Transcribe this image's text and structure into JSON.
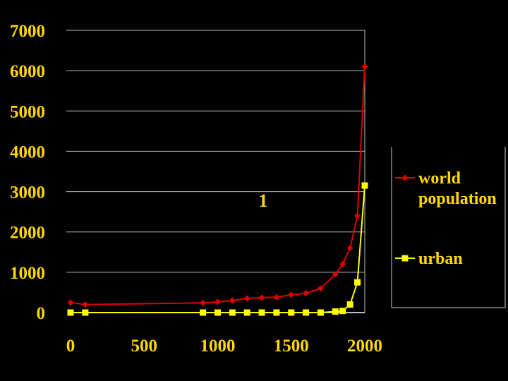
{
  "chart_data": {
    "type": "line",
    "x_ticks": [
      "0",
      "500",
      "1000",
      "1500",
      "2000"
    ],
    "y_ticks": [
      "0",
      "1000",
      "2000",
      "3000",
      "4000",
      "5000",
      "6000",
      "7000"
    ],
    "xlim": [
      0,
      2000
    ],
    "ylim": [
      0,
      7000
    ],
    "grid": "horizontal",
    "annotation": "1",
    "series": [
      {
        "name": "world population",
        "legend_lines": [
          "world",
          "population"
        ],
        "color": "#e00000",
        "marker": "diamond",
        "points": [
          [
            0,
            250
          ],
          [
            100,
            200
          ],
          [
            900,
            240
          ],
          [
            1000,
            265
          ],
          [
            1100,
            300
          ],
          [
            1200,
            350
          ],
          [
            1300,
            370
          ],
          [
            1400,
            380
          ],
          [
            1500,
            440
          ],
          [
            1600,
            480
          ],
          [
            1700,
            600
          ],
          [
            1800,
            950
          ],
          [
            1850,
            1200
          ],
          [
            1900,
            1600
          ],
          [
            1950,
            2400
          ],
          [
            2000,
            6100
          ]
        ]
      },
      {
        "name": "urban",
        "legend_lines": [
          "urban"
        ],
        "color": "#ffff00",
        "marker": "square",
        "points": [
          [
            0,
            0
          ],
          [
            100,
            0
          ],
          [
            900,
            0
          ],
          [
            1000,
            0
          ],
          [
            1100,
            0
          ],
          [
            1200,
            0
          ],
          [
            1300,
            0
          ],
          [
            1400,
            0
          ],
          [
            1500,
            0
          ],
          [
            1600,
            0
          ],
          [
            1700,
            0
          ],
          [
            1800,
            25
          ],
          [
            1850,
            40
          ],
          [
            1900,
            200
          ],
          [
            1950,
            750
          ],
          [
            2000,
            3150
          ]
        ]
      }
    ]
  }
}
